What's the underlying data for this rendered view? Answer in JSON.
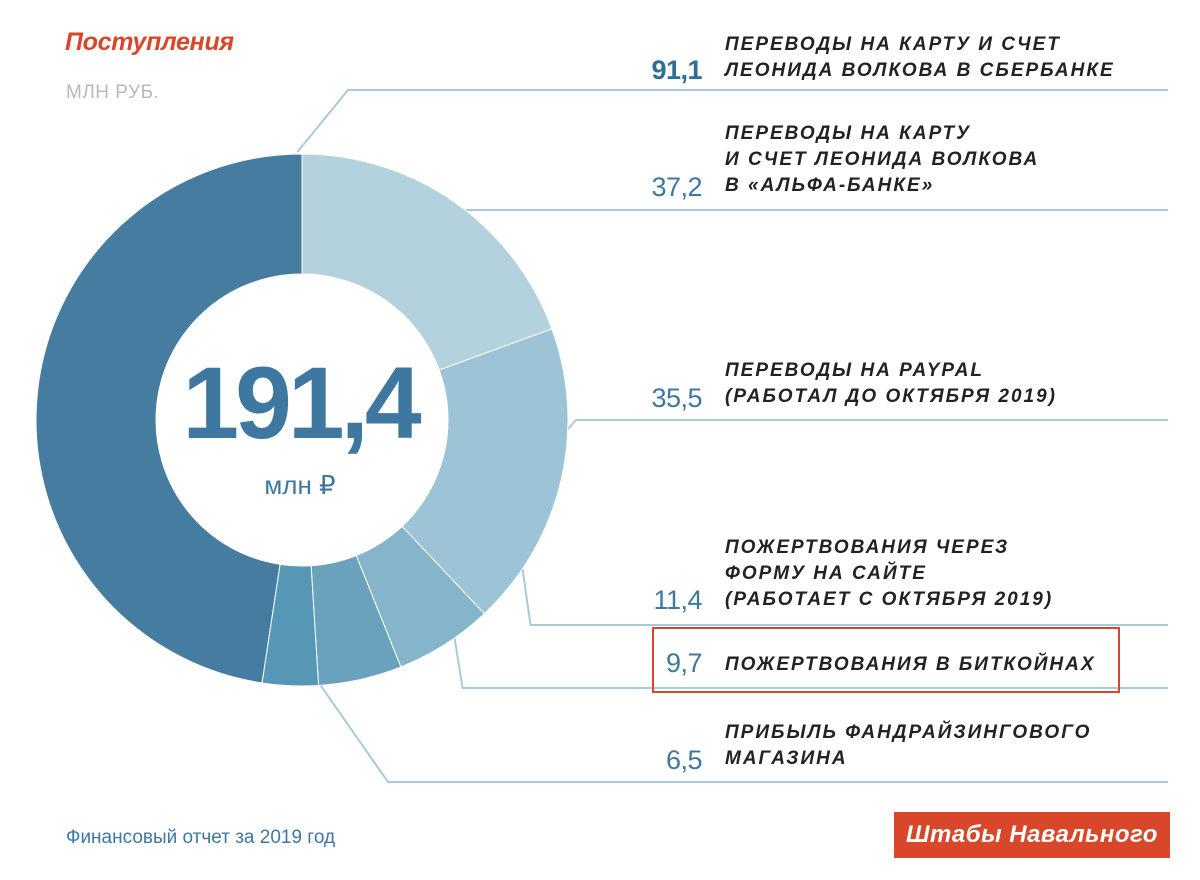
{
  "header": {
    "title": "Поступления",
    "unit": "МЛН РУБ."
  },
  "center": {
    "total": "191,4",
    "unit": "млн ₽"
  },
  "footer": {
    "source": "Финансовый отчет за 2019 год",
    "brand": "Штабы Навального"
  },
  "colors": {
    "accent": "#d9472b",
    "text_blue": "#3e78a0",
    "leader": "#a8cbdb"
  },
  "chart_data": {
    "type": "pie",
    "donut": true,
    "total": 191.4,
    "categories": [
      "ПЕРЕВОДЫ НА КАРТУ И СЧЕТ ЛЕОНИДА ВОЛКОВА В СБЕРБАНКЕ",
      "ПЕРЕВОДЫ НА КАРТУ И СЧЕТ ЛЕОНИДА ВОЛКОВА В «АЛЬФА-БАНКЕ»",
      "ПЕРЕВОДЫ НА PAYPAL (РАБОТАЛ ДО ОКТЯБРЯ 2019)",
      "ПОЖЕРТВОВАНИЯ ЧЕРЕЗ ФОРМУ НА САЙТЕ (РАБОТАЕТ С ОКТЯБРЯ 2019)",
      "ПОЖЕРТВОВАНИЯ В БИТКОЙНАХ",
      "ПРИБЫЛЬ ФАНДРАЙЗИНГОВОГО МАГАЗИНА"
    ],
    "values": [
      91.1,
      37.2,
      35.5,
      11.4,
      9.7,
      6.5
    ],
    "slices": [
      {
        "value": 91.1,
        "value_label": "91,1",
        "label_lines": [
          "ПЕРЕВОДЫ НА КАРТУ И СЧЕТ",
          "ЛЕОНИДА ВОЛКОВА В СБЕРБАНКЕ"
        ],
        "color": "#457c9f"
      },
      {
        "value": 37.2,
        "value_label": "37,2",
        "label_lines": [
          "ПЕРЕВОДЫ НА КАРТУ",
          "И СЧЕТ ЛЕОНИДА ВОЛКОВА",
          "В «АЛЬФА-БАНКЕ»"
        ],
        "color": "#b3d2de"
      },
      {
        "value": 35.5,
        "value_label": "35,5",
        "label_lines": [
          "ПЕРЕВОДЫ НА PAYPAL",
          "(РАБОТАЛ ДО ОКТЯБРЯ 2019)"
        ],
        "color": "#9dc4d6"
      },
      {
        "value": 11.4,
        "value_label": "11,4",
        "label_lines": [
          "ПОЖЕРТВОВАНИЯ ЧЕРЕЗ",
          "ФОРМУ НА САЙТЕ",
          "(РАБОТАЕТ С ОКТЯБРЯ 2019)"
        ],
        "color": "#84b5cb"
      },
      {
        "value": 9.7,
        "value_label": "9,7",
        "label_lines": [
          "ПОЖЕРТВОВАНИЯ В БИТКОЙНАХ"
        ],
        "color": "#6aa2bd",
        "highlighted": true
      },
      {
        "value": 6.5,
        "value_label": "6,5",
        "label_lines": [
          "ПРИБЫЛЬ ФАНДРАЙЗИНГОВОГО",
          "МАГАЗИНА"
        ],
        "color": "#5597b4"
      }
    ]
  }
}
